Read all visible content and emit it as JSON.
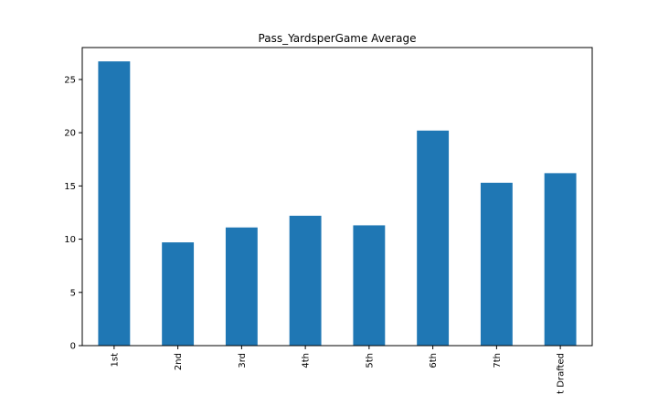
{
  "chart_data": {
    "type": "bar",
    "title": "Pass_YardsperGame Average",
    "categories": [
      "1st",
      "2nd",
      "3rd",
      "4th",
      "5th",
      "6th",
      "7th",
      "t Drafted"
    ],
    "values": [
      26.7,
      9.7,
      11.1,
      12.2,
      11.3,
      20.2,
      15.3,
      16.2
    ],
    "ylim": [
      0,
      28
    ],
    "yticks": [
      0,
      5,
      10,
      15,
      20,
      25
    ],
    "xlabel": "",
    "ylabel": "",
    "grid": false,
    "bar_color": "#1f77b4"
  }
}
